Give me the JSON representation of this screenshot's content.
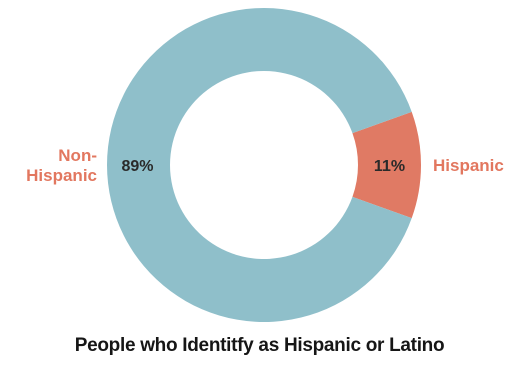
{
  "chart_data": {
    "type": "pie",
    "variant": "donut",
    "title": "People who Identitfy as Hispanic or Latino",
    "slices": [
      {
        "label": "Hispanic",
        "value": 11,
        "value_label": "11%",
        "color": "#e07a64",
        "label_color": "#e2775f"
      },
      {
        "label": "Non-Hispanic",
        "value": 89,
        "value_label": "89%",
        "color": "#8fbfca",
        "label_color": "#e2775f"
      }
    ],
    "legend": "none",
    "value_label_color": "#2a2a2a"
  }
}
